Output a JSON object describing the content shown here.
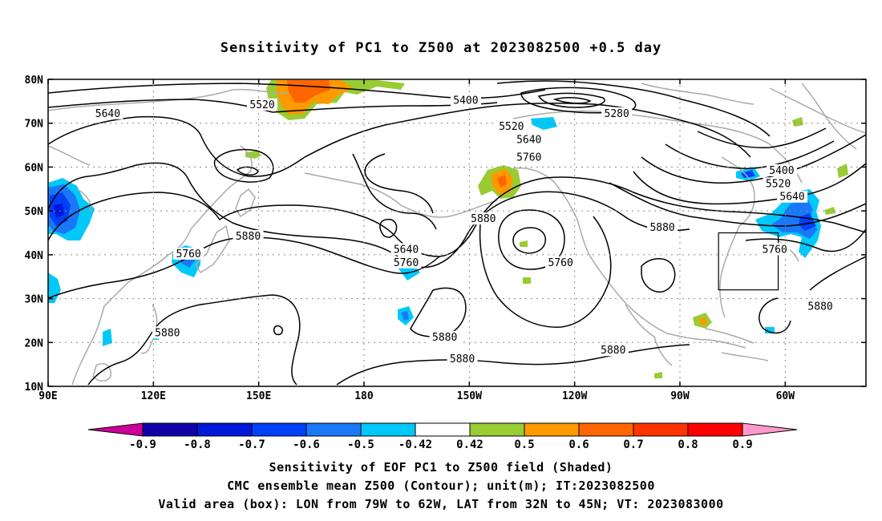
{
  "title": "Sensitivity of PC1 to Z500 at 2023082500 +0.5 day",
  "captions": {
    "line1": "Sensitivity of EOF PC1 to Z500 field (Shaded)",
    "line2": "CMC ensemble mean Z500 (Contour); unit(m); IT:2023082500",
    "line3": "Valid area (box): LON from 79W to 62W, LAT from 32N to 45N; VT: 2023083000"
  },
  "map": {
    "lat_labels": [
      "80N",
      "70N",
      "60N",
      "50N",
      "40N",
      "30N",
      "20N",
      "10N"
    ],
    "lat_values": [
      80,
      70,
      60,
      50,
      40,
      30,
      20,
      10
    ],
    "lon_labels": [
      "90E",
      "120E",
      "150E",
      "180",
      "150W",
      "120W",
      "90W",
      "60W"
    ],
    "lon_values": [
      90,
      120,
      150,
      180,
      210,
      240,
      270,
      300
    ],
    "lon_range": [
      90,
      323
    ],
    "lat_range": [
      10,
      80
    ],
    "valid_box": {
      "lon": [
        281,
        298
      ],
      "lat": [
        32,
        45
      ]
    },
    "contour_labels": [
      {
        "text": "5640",
        "lon": 107,
        "lat": 72
      },
      {
        "text": "5520",
        "lon": 151,
        "lat": 74
      },
      {
        "text": "5400",
        "lon": 209,
        "lat": 75
      },
      {
        "text": "5280",
        "lon": 252,
        "lat": 72
      },
      {
        "text": "5520",
        "lon": 222,
        "lat": 69
      },
      {
        "text": "5640",
        "lon": 227,
        "lat": 66
      },
      {
        "text": "5760",
        "lon": 227,
        "lat": 62
      },
      {
        "text": "5400",
        "lon": 299,
        "lat": 59
      },
      {
        "text": "5520",
        "lon": 298,
        "lat": 56
      },
      {
        "text": "5640",
        "lon": 302,
        "lat": 53
      },
      {
        "text": "5880",
        "lon": 214,
        "lat": 48
      },
      {
        "text": "5880",
        "lon": 147,
        "lat": 44
      },
      {
        "text": "5640",
        "lon": 192,
        "lat": 41
      },
      {
        "text": "5760",
        "lon": 192,
        "lat": 38
      },
      {
        "text": "5760",
        "lon": 130,
        "lat": 40
      },
      {
        "text": "5760",
        "lon": 236,
        "lat": 38
      },
      {
        "text": "5760",
        "lon": 297,
        "lat": 41
      },
      {
        "text": "5880",
        "lon": 265,
        "lat": 46
      },
      {
        "text": "5880",
        "lon": 310,
        "lat": 28
      },
      {
        "text": "5880",
        "lon": 124,
        "lat": 22
      },
      {
        "text": "5880",
        "lon": 203,
        "lat": 21
      },
      {
        "text": "5880",
        "lon": 208,
        "lat": 16
      },
      {
        "text": "5880",
        "lon": 251,
        "lat": 18
      }
    ]
  },
  "colorbar": {
    "tick_labels": [
      "-0.9",
      "-0.8",
      "-0.7",
      "-0.6",
      "-0.5",
      "-0.42",
      "0.42",
      "0.5",
      "0.6",
      "0.7",
      "0.8",
      "0.9"
    ],
    "colors": [
      "#cc0099",
      "#1000a8",
      "#0018d8",
      "#0040f8",
      "#1a78f8",
      "#00c8f8",
      "#ffffff",
      "#99cc33",
      "#ff9900",
      "#ff6600",
      "#ff3300",
      "#ff0000",
      "#ff99cc"
    ]
  },
  "colors": {
    "contour": "#000000",
    "coast": "#aaaaaa",
    "grid": "#888888"
  }
}
